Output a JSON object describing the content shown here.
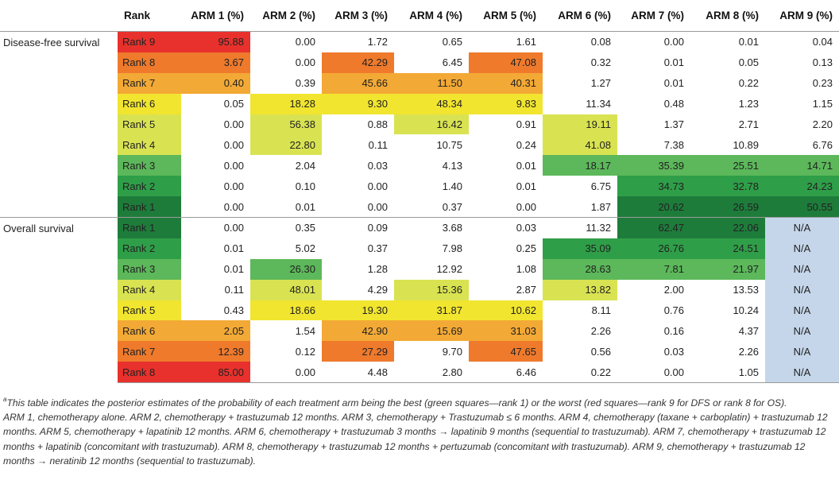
{
  "table": {
    "headers": [
      "Rank",
      "ARM 1 (%)",
      "ARM 2 (%)",
      "ARM 3 (%)",
      "ARM 4 (%)",
      "ARM 5 (%)",
      "ARM 6 (%)",
      "ARM 7 (%)",
      "ARM 8 (%)",
      "ARM 9 (%)"
    ],
    "groups": [
      {
        "label": "Disease-free survival",
        "rows": [
          {
            "rank": "Rank 9",
            "values": [
              "95.88",
              "0.00",
              "1.72",
              "0.65",
              "1.61",
              "0.08",
              "0.00",
              "0.01",
              "0.04"
            ]
          },
          {
            "rank": "Rank 8",
            "values": [
              "3.67",
              "0.00",
              "42.29",
              "6.45",
              "47.08",
              "0.32",
              "0.01",
              "0.05",
              "0.13"
            ]
          },
          {
            "rank": "Rank 7",
            "values": [
              "0.40",
              "0.39",
              "45.66",
              "11.50",
              "40.31",
              "1.27",
              "0.01",
              "0.22",
              "0.23"
            ]
          },
          {
            "rank": "Rank 6",
            "values": [
              "0.05",
              "18.28",
              "9.30",
              "48.34",
              "9.83",
              "11.34",
              "0.48",
              "1.23",
              "1.15"
            ]
          },
          {
            "rank": "Rank 5",
            "values": [
              "0.00",
              "56.38",
              "0.88",
              "16.42",
              "0.91",
              "19.11",
              "1.37",
              "2.71",
              "2.20"
            ]
          },
          {
            "rank": "Rank 4",
            "values": [
              "0.00",
              "22.80",
              "0.11",
              "10.75",
              "0.24",
              "41.08",
              "7.38",
              "10.89",
              "6.76"
            ]
          },
          {
            "rank": "Rank 3",
            "values": [
              "0.00",
              "2.04",
              "0.03",
              "4.13",
              "0.01",
              "18.17",
              "35.39",
              "25.51",
              "14.71"
            ]
          },
          {
            "rank": "Rank 2",
            "values": [
              "0.00",
              "0.10",
              "0.00",
              "1.40",
              "0.01",
              "6.75",
              "34.73",
              "32.78",
              "24.23"
            ]
          },
          {
            "rank": "Rank 1",
            "values": [
              "0.00",
              "0.01",
              "0.00",
              "0.37",
              "0.00",
              "1.87",
              "20.62",
              "26.59",
              "50.55"
            ]
          }
        ]
      },
      {
        "label": "Overall survival",
        "rows": [
          {
            "rank": "Rank 1",
            "values": [
              "0.00",
              "0.35",
              "0.09",
              "3.68",
              "0.03",
              "11.32",
              "62.47",
              "22.06",
              "N/A"
            ]
          },
          {
            "rank": "Rank 2",
            "values": [
              "0.01",
              "5.02",
              "0.37",
              "7.98",
              "0.25",
              "35.09",
              "26.76",
              "24.51",
              "N/A"
            ]
          },
          {
            "rank": "Rank 3",
            "values": [
              "0.01",
              "26.30",
              "1.28",
              "12.92",
              "1.08",
              "28.63",
              "7.81",
              "21.97",
              "N/A"
            ]
          },
          {
            "rank": "Rank 4",
            "values": [
              "0.11",
              "48.01",
              "4.29",
              "15.36",
              "2.87",
              "13.82",
              "2.00",
              "13.53",
              "N/A"
            ]
          },
          {
            "rank": "Rank 5",
            "values": [
              "0.43",
              "18.66",
              "19.30",
              "31.87",
              "10.62",
              "8.11",
              "0.76",
              "10.24",
              "N/A"
            ]
          },
          {
            "rank": "Rank 6",
            "values": [
              "2.05",
              "1.54",
              "42.90",
              "15.69",
              "31.03",
              "2.26",
              "0.16",
              "4.37",
              "N/A"
            ]
          },
          {
            "rank": "Rank 7",
            "values": [
              "12.39",
              "0.12",
              "27.29",
              "9.70",
              "47.65",
              "0.56",
              "0.03",
              "2.26",
              "N/A"
            ]
          },
          {
            "rank": "Rank 8",
            "values": [
              "85.00",
              "0.00",
              "4.48",
              "2.80",
              "6.46",
              "0.22",
              "0.00",
              "1.05",
              "N/A"
            ]
          }
        ]
      }
    ]
  },
  "colors": {
    "rank_columns": {
      "Disease-free survival": {
        "Rank 9": "#e8312c",
        "Rank 8": "#ef7a2c",
        "Rank 7": "#f3a935",
        "Rank 6": "#f1e52f",
        "Rank 5": "#d9e352",
        "Rank 4": "#d9e352",
        "Rank 3": "#5cb85a",
        "Rank 2": "#2f9e48",
        "Rank 1": "#1e7c3b"
      },
      "Overall survival": {
        "Rank 1": "#1e7c3b",
        "Rank 2": "#2f9e48",
        "Rank 3": "#5cb85a",
        "Rank 4": "#d9e352",
        "Rank 5": "#f1e52f",
        "Rank 6": "#f3a935",
        "Rank 7": "#ef7a2c",
        "Rank 8": "#e8312c"
      }
    },
    "na_cell": "#c5d6ea",
    "highlighted_cells": {
      "Disease-free survival": [
        [
          "#e8312c",
          null,
          null,
          null,
          null,
          null,
          null,
          null,
          null
        ],
        [
          "#ef7a2c",
          null,
          "#ef7a2c",
          null,
          "#ef7a2c",
          null,
          null,
          null,
          null
        ],
        [
          "#f3a935",
          null,
          "#f3a935",
          "#f3a935",
          "#f3a935",
          null,
          null,
          null,
          null
        ],
        [
          null,
          "#f1e52f",
          "#f1e52f",
          "#f1e52f",
          "#f1e52f",
          null,
          null,
          null,
          null
        ],
        [
          null,
          "#d9e352",
          null,
          "#d9e352",
          null,
          "#d9e352",
          null,
          null,
          null
        ],
        [
          null,
          "#d9e352",
          null,
          null,
          null,
          "#d9e352",
          null,
          null,
          null
        ],
        [
          null,
          null,
          null,
          null,
          null,
          "#5cb85a",
          "#5cb85a",
          "#5cb85a",
          "#5cb85a"
        ],
        [
          null,
          null,
          null,
          null,
          null,
          null,
          "#2f9e48",
          "#2f9e48",
          "#2f9e48"
        ],
        [
          null,
          null,
          null,
          null,
          null,
          null,
          "#1e7c3b",
          "#1e7c3b",
          "#1e7c3b"
        ]
      ],
      "Overall survival": [
        [
          null,
          null,
          null,
          null,
          null,
          null,
          "#1e7c3b",
          "#1e7c3b",
          null
        ],
        [
          null,
          null,
          null,
          null,
          null,
          "#2f9e48",
          "#2f9e48",
          "#2f9e48",
          null
        ],
        [
          null,
          "#5cb85a",
          null,
          null,
          null,
          "#5cb85a",
          "#5cb85a",
          "#5cb85a",
          null
        ],
        [
          null,
          "#d9e352",
          null,
          "#d9e352",
          null,
          "#d9e352",
          null,
          null,
          null
        ],
        [
          null,
          "#f1e52f",
          "#f1e52f",
          "#f1e52f",
          "#f1e52f",
          null,
          null,
          null,
          null
        ],
        [
          "#f3a935",
          null,
          "#f3a935",
          "#f3a935",
          "#f3a935",
          null,
          null,
          null,
          null
        ],
        [
          "#ef7a2c",
          null,
          "#ef7a2c",
          null,
          "#ef7a2c",
          null,
          null,
          null,
          null
        ],
        [
          "#e8312c",
          null,
          null,
          null,
          null,
          null,
          null,
          null,
          null
        ]
      ]
    }
  },
  "notes": {
    "superscript": "a",
    "footnote_a": "This table indicates the posterior estimates of the probability of each treatment arm being the best (green squares—rank 1) or the worst (red squares—rank 9 for DFS or rank 8 for OS).",
    "legend": "ARM 1, chemotherapy alone. ARM 2, chemotherapy + trastuzumab 12 months. ARM 3, chemotherapy + Trastuzumab ≤ 6 months. ARM 4, chemotherapy (taxane + carboplatin) + trastuzumab 12 months. ARM 5, chemotherapy + lapatinib 12 months. ARM 6, chemotherapy + trastuzumab 3 months → lapatinib 9 months (sequential to trastuzumab). ARM 7, chemotherapy + trastuzumab 12 months + lapatinib (concomitant with trastuzumab). ARM 8, chemotherapy + trastuzumab 12 months + pertuzumab (concomitant with trastuzumab). ARM 9, chemotherapy + trastuzumab 12 months → neratinib 12 months (sequential to trastuzumab)."
  }
}
